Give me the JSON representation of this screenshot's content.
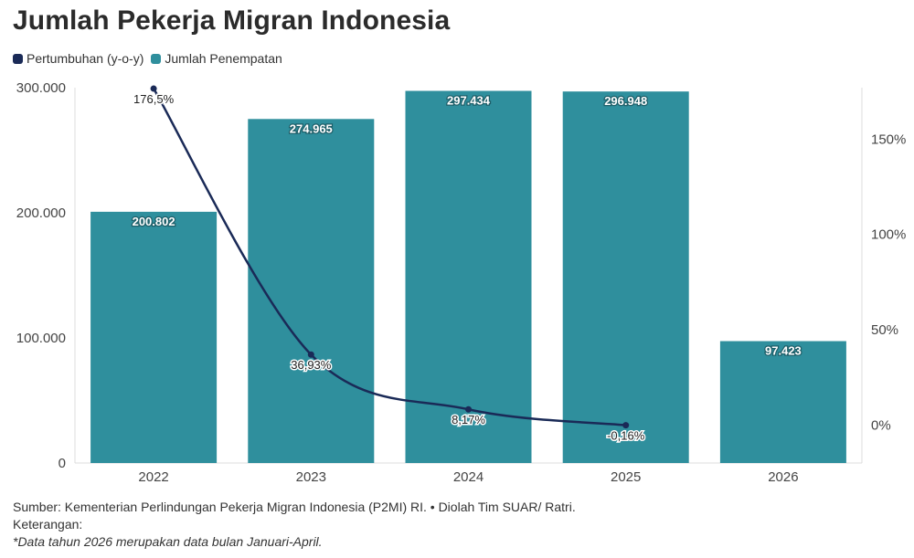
{
  "title": "Jumlah Pekerja Migran Indonesia",
  "legend": [
    {
      "label": "Pertumbuhan (y-o-y)",
      "color": "#1a2a57"
    },
    {
      "label": "Jumlah Penempatan",
      "color": "#2f8f9d"
    }
  ],
  "footer": {
    "source": "Sumber: Kementerian Perlindungan Pekerja Migran Indonesia (P2MI) RI. • Diolah Tim SUAR/ Ratri.",
    "note_label": "Keterangan:",
    "note": "*Data tahun 2026 merupakan data bulan Januari-April."
  },
  "chart_data": {
    "type": "bar",
    "categories": [
      "2022",
      "2023",
      "2024",
      "2025",
      "2026"
    ],
    "series": [
      {
        "name": "Jumlah Penempatan",
        "type": "bar",
        "axis": "left",
        "values": [
          200802,
          274965,
          297434,
          296948,
          97423
        ],
        "labels": [
          "200.802",
          "274.965",
          "297.434",
          "296.948",
          "97.423"
        ],
        "color": "#2f8f9d"
      },
      {
        "name": "Pertumbuhan (y-o-y)",
        "type": "line",
        "axis": "right",
        "values": [
          176.5,
          36.93,
          8.17,
          -0.16,
          null
        ],
        "labels": [
          "176,5%",
          "36,93%",
          "8,17%",
          "-0,16%",
          ""
        ],
        "color": "#1a2a57"
      }
    ],
    "y_left": {
      "ylim": [
        0,
        300000
      ],
      "ticks": [
        0,
        100000,
        200000,
        300000
      ],
      "tick_labels": [
        "0",
        "100.000",
        "200.000",
        "300.000"
      ]
    },
    "y_right": {
      "ylim": [
        -20,
        177
      ],
      "ticks": [
        0,
        50,
        100,
        150
      ],
      "tick_labels": [
        "0%",
        "50%",
        "100%",
        "150%"
      ]
    },
    "grid": false,
    "legend_position": "top-left"
  }
}
